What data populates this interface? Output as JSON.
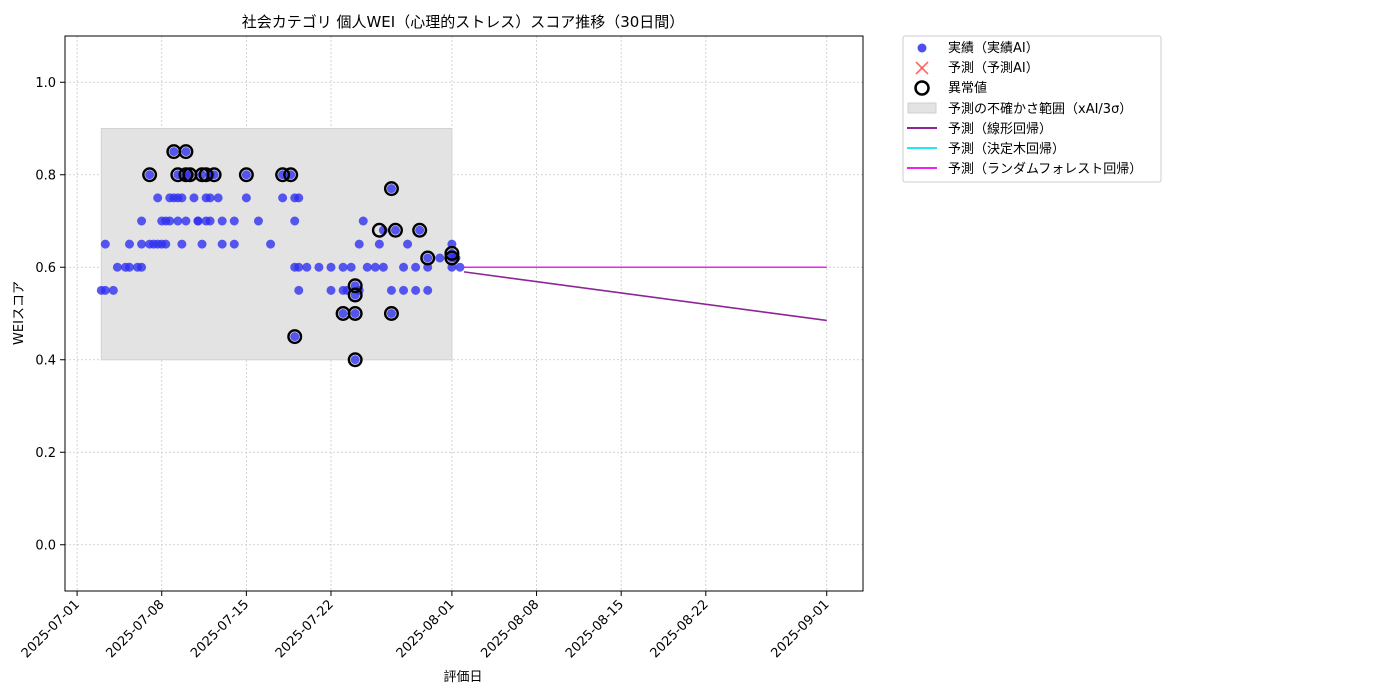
{
  "chart_data": {
    "type": "scatter",
    "title": "社会カテゴリ 個人WEI（心理的ストレス）スコア推移（30日間）",
    "xlabel": "評価日",
    "ylabel": "WEIスコア",
    "xlim": [
      "2025-06-30",
      "2025-09-04"
    ],
    "ylim": [
      -0.1,
      1.1
    ],
    "yticks": [
      0.0,
      0.2,
      0.4,
      0.6,
      0.8,
      1.0
    ],
    "ytick_labels": [
      "0.0",
      "0.2",
      "0.4",
      "0.6",
      "0.8",
      "1.0"
    ],
    "xticks": [
      "2025-07-01",
      "2025-07-08",
      "2025-07-15",
      "2025-07-22",
      "2025-08-01",
      "2025-08-08",
      "2025-08-15",
      "2025-08-22",
      "2025-09-01"
    ],
    "grid": true,
    "legend_position": "outside-right",
    "legend": [
      "実績（実績AI）",
      "予測（予測AI）",
      "異常値",
      "予測の不確かさ範囲（xAI/3σ）",
      "予測（線形回帰）",
      "予測（決定木回帰）",
      "予測（ランダムフォレスト回帰）"
    ],
    "colors": {
      "actual": "#0000ee",
      "predicted": "#ff4444",
      "anomaly": "#000000",
      "band": "#e3e3e3",
      "linear": "#8e2596",
      "tree": "#22e8f0",
      "forest": "#ee22ee"
    },
    "uncertainty_band": {
      "x": [
        "2025-07-03",
        "2025-08-01"
      ],
      "y": [
        0.4,
        0.9
      ]
    },
    "series": [
      {
        "name": "実績（実績AI）",
        "points": [
          [
            "2025-07-03 00:00",
            0.55
          ],
          [
            "2025-07-03 08:00",
            0.55
          ],
          [
            "2025-07-03 08:00",
            0.65
          ],
          [
            "2025-07-04 00:00",
            0.55
          ],
          [
            "2025-07-04 08:00",
            0.6
          ],
          [
            "2025-07-05 00:00",
            0.6
          ],
          [
            "2025-07-05 08:00",
            0.6
          ],
          [
            "2025-07-05 08:00",
            0.65
          ],
          [
            "2025-07-06 00:00",
            0.6
          ],
          [
            "2025-07-06 08:00",
            0.6
          ],
          [
            "2025-07-06 08:00",
            0.7
          ],
          [
            "2025-07-06 08:00",
            0.65
          ],
          [
            "2025-07-07 00:00",
            0.8
          ],
          [
            "2025-07-07 00:00",
            0.65
          ],
          [
            "2025-07-07 08:00",
            0.65
          ],
          [
            "2025-07-07 16:00",
            0.65
          ],
          [
            "2025-07-07 16:00",
            0.75
          ],
          [
            "2025-07-08 00:00",
            0.7
          ],
          [
            "2025-07-08 00:00",
            0.65
          ],
          [
            "2025-07-08 08:00",
            0.7
          ],
          [
            "2025-07-08 08:00",
            0.65
          ],
          [
            "2025-07-08 16:00",
            0.75
          ],
          [
            "2025-07-08 16:00",
            0.7
          ],
          [
            "2025-07-09 00:00",
            0.85
          ],
          [
            "2025-07-09 00:00",
            0.75
          ],
          [
            "2025-07-09 08:00",
            0.75
          ],
          [
            "2025-07-09 08:00",
            0.7
          ],
          [
            "2025-07-09 08:00",
            0.8
          ],
          [
            "2025-07-09 16:00",
            0.75
          ],
          [
            "2025-07-09 16:00",
            0.65
          ],
          [
            "2025-07-10 00:00",
            0.85
          ],
          [
            "2025-07-10 00:00",
            0.8
          ],
          [
            "2025-07-10 00:00",
            0.7
          ],
          [
            "2025-07-10 08:00",
            0.8
          ],
          [
            "2025-07-10 16:00",
            0.75
          ],
          [
            "2025-07-11 00:00",
            0.7
          ],
          [
            "2025-07-11 00:00",
            0.7
          ],
          [
            "2025-07-11 08:00",
            0.65
          ],
          [
            "2025-07-11 08:00",
            0.8
          ],
          [
            "2025-07-11 16:00",
            0.75
          ],
          [
            "2025-07-11 16:00",
            0.7
          ],
          [
            "2025-07-12 00:00",
            0.8
          ],
          [
            "2025-07-12 00:00",
            0.75
          ],
          [
            "2025-07-12 00:00",
            0.7
          ],
          [
            "2025-07-12 08:00",
            0.8
          ],
          [
            "2025-07-12 16:00",
            0.75
          ],
          [
            "2025-07-13 00:00",
            0.7
          ],
          [
            "2025-07-13 00:00",
            0.65
          ],
          [
            "2025-07-14 00:00",
            0.7
          ],
          [
            "2025-07-14 00:00",
            0.65
          ],
          [
            "2025-07-15 00:00",
            0.8
          ],
          [
            "2025-07-15 00:00",
            0.75
          ],
          [
            "2025-07-16 00:00",
            0.7
          ],
          [
            "2025-07-17 00:00",
            0.65
          ],
          [
            "2025-07-18 00:00",
            0.8
          ],
          [
            "2025-07-18 00:00",
            0.75
          ],
          [
            "2025-07-18 16:00",
            0.8
          ],
          [
            "2025-07-19 00:00",
            0.75
          ],
          [
            "2025-07-19 00:00",
            0.7
          ],
          [
            "2025-07-19 00:00",
            0.6
          ],
          [
            "2025-07-19 00:00",
            0.45
          ],
          [
            "2025-07-19 08:00",
            0.75
          ],
          [
            "2025-07-19 08:00",
            0.6
          ],
          [
            "2025-07-19 08:00",
            0.55
          ],
          [
            "2025-07-20 00:00",
            0.6
          ],
          [
            "2025-07-21 00:00",
            0.6
          ],
          [
            "2025-07-22 00:00",
            0.55
          ],
          [
            "2025-07-22 00:00",
            0.6
          ],
          [
            "2025-07-23 00:00",
            0.6
          ],
          [
            "2025-07-23 00:00",
            0.55
          ],
          [
            "2025-07-23 00:00",
            0.5
          ],
          [
            "2025-07-23 08:00",
            0.55
          ],
          [
            "2025-07-23 16:00",
            0.6
          ],
          [
            "2025-07-24 00:00",
            0.5
          ],
          [
            "2025-07-24 00:00",
            0.4
          ],
          [
            "2025-07-24 00:00",
            0.56
          ],
          [
            "2025-07-24 00:00",
            0.54
          ],
          [
            "2025-07-24 08:00",
            0.65
          ],
          [
            "2025-07-24 08:00",
            0.55
          ],
          [
            "2025-07-24 16:00",
            0.7
          ],
          [
            "2025-07-25 00:00",
            0.6
          ],
          [
            "2025-07-25 16:00",
            0.6
          ],
          [
            "2025-07-26 00:00",
            0.65
          ],
          [
            "2025-07-26 08:00",
            0.6
          ],
          [
            "2025-07-26 08:00",
            0.68
          ],
          [
            "2025-07-27 00:00",
            0.5
          ],
          [
            "2025-07-27 00:00",
            0.77
          ],
          [
            "2025-07-27 00:00",
            0.55
          ],
          [
            "2025-07-27 08:00",
            0.68
          ],
          [
            "2025-07-28 00:00",
            0.6
          ],
          [
            "2025-07-28 00:00",
            0.55
          ],
          [
            "2025-07-28 08:00",
            0.65
          ],
          [
            "2025-07-29 00:00",
            0.6
          ],
          [
            "2025-07-29 00:00",
            0.55
          ],
          [
            "2025-07-29 08:00",
            0.68
          ],
          [
            "2025-07-30 00:00",
            0.62
          ],
          [
            "2025-07-30 00:00",
            0.55
          ],
          [
            "2025-07-30 00:00",
            0.6
          ],
          [
            "2025-07-31 00:00",
            0.62
          ],
          [
            "2025-08-01 00:00",
            0.65
          ],
          [
            "2025-08-01 00:00",
            0.62
          ],
          [
            "2025-08-01 00:00",
            0.6
          ],
          [
            "2025-08-01 00:00",
            0.63
          ],
          [
            "2025-08-01 08:00",
            0.62
          ],
          [
            "2025-08-01 16:00",
            0.6
          ]
        ]
      },
      {
        "name": "異常値",
        "points": [
          [
            "2025-07-07 00:00",
            0.8
          ],
          [
            "2025-07-09 00:00",
            0.85
          ],
          [
            "2025-07-09 08:00",
            0.8
          ],
          [
            "2025-07-10 00:00",
            0.85
          ],
          [
            "2025-07-10 00:00",
            0.8
          ],
          [
            "2025-07-10 08:00",
            0.8
          ],
          [
            "2025-07-11 08:00",
            0.8
          ],
          [
            "2025-07-11 16:00",
            0.8
          ],
          [
            "2025-07-12 08:00",
            0.8
          ],
          [
            "2025-07-15 00:00",
            0.8
          ],
          [
            "2025-07-18 00:00",
            0.8
          ],
          [
            "2025-07-18 16:00",
            0.8
          ],
          [
            "2025-07-19 00:00",
            0.45
          ],
          [
            "2025-07-23 00:00",
            0.5
          ],
          [
            "2025-07-24 00:00",
            0.5
          ],
          [
            "2025-07-24 00:00",
            0.4
          ],
          [
            "2025-07-24 00:00",
            0.56
          ],
          [
            "2025-07-24 00:00",
            0.54
          ],
          [
            "2025-07-26 00:00",
            0.68
          ],
          [
            "2025-07-27 00:00",
            0.5
          ],
          [
            "2025-07-27 00:00",
            0.77
          ],
          [
            "2025-07-27 08:00",
            0.68
          ],
          [
            "2025-07-29 08:00",
            0.68
          ],
          [
            "2025-07-30 00:00",
            0.62
          ],
          [
            "2025-08-01 00:00",
            0.63
          ],
          [
            "2025-08-01 00:00",
            0.62
          ]
        ]
      },
      {
        "name": "予測（線形回帰）",
        "points": [
          [
            "2025-08-02",
            0.59
          ],
          [
            "2025-09-01",
            0.485
          ]
        ]
      },
      {
        "name": "予測（ランダムフォレスト回帰）",
        "points": [
          [
            "2025-08-02",
            0.6
          ],
          [
            "2025-09-01",
            0.6
          ]
        ]
      }
    ]
  }
}
